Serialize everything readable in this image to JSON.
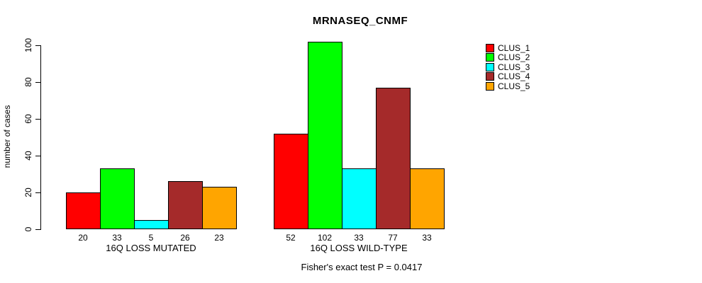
{
  "chart_data": {
    "type": "bar",
    "title": "MRNASEQ_CNMF",
    "ylabel": "number of cases",
    "yticks": [
      0,
      20,
      40,
      60,
      80,
      100
    ],
    "ylim": [
      0,
      105
    ],
    "grid": false,
    "legend_position": "right",
    "series_labels": [
      "CLUS_1",
      "CLUS_2",
      "CLUS_3",
      "CLUS_4",
      "CLUS_5"
    ],
    "colors": [
      "#FF0000",
      "#00FF00",
      "#00FFFF",
      "#A52A2A",
      "#FFA500"
    ],
    "groups": [
      {
        "label": "16Q LOSS MUTATED",
        "values": [
          20,
          33,
          5,
          26,
          23
        ]
      },
      {
        "label": "16Q LOSS WILD-TYPE",
        "values": [
          52,
          102,
          33,
          77,
          33
        ]
      }
    ],
    "annotation": "Fisher's exact test P = 0.0417"
  }
}
